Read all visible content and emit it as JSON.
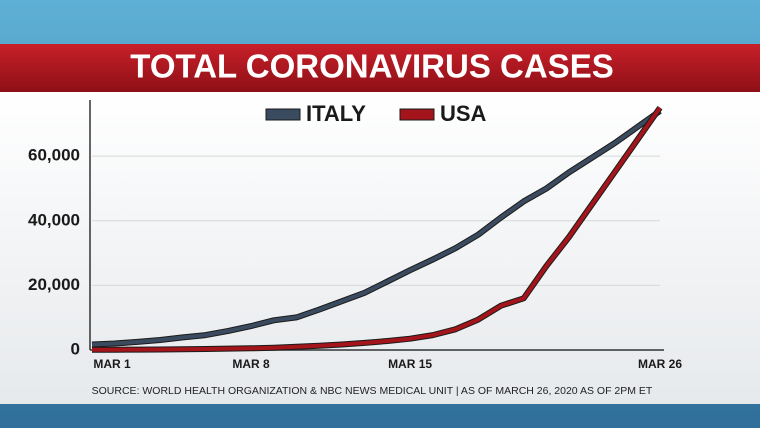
{
  "chart_data": {
    "type": "line",
    "title": "TOTAL CORONAVIRUS CASES",
    "source": "SOURCE: WORLD HEALTH ORGANIZATION & NBC NEWS MEDICAL UNIT | AS OF MARCH 26, 2020 AS OF 2PM ET",
    "categories": [
      "MAR 1",
      null,
      null,
      null,
      null,
      null,
      null,
      "MAR 8",
      null,
      null,
      null,
      null,
      null,
      null,
      "MAR 15",
      null,
      null,
      null,
      null,
      null,
      null,
      null,
      null,
      null,
      null,
      "MAR 26"
    ],
    "series": [
      {
        "name": "ITALY",
        "color": "#3a4a5f",
        "values": [
          1700,
          2000,
          2500,
          3100,
          3900,
          4600,
          5900,
          7400,
          9200,
          10100,
          12500,
          15100,
          17700,
          21200,
          24700,
          28000,
          31500,
          35700,
          41000,
          46000,
          50000,
          55000,
          59500,
          64000,
          69000,
          74000
        ]
      },
      {
        "name": "USA",
        "color": "#a3141b",
        "values": [
          75,
          100,
          120,
          160,
          230,
          320,
          430,
          540,
          700,
          1000,
          1300,
          1700,
          2200,
          2800,
          3500,
          4600,
          6400,
          9400,
          13700,
          16000,
          26000,
          35000,
          45000,
          55000,
          65000,
          75000
        ]
      }
    ],
    "ylim": [
      0,
      78000
    ],
    "yticks": [
      {
        "value": 0,
        "label": "0"
      },
      {
        "value": 20000,
        "label": "20,000"
      },
      {
        "value": 40000,
        "label": "40,000"
      },
      {
        "value": 60000,
        "label": "60,000"
      }
    ],
    "grid": true,
    "legend": "top"
  }
}
